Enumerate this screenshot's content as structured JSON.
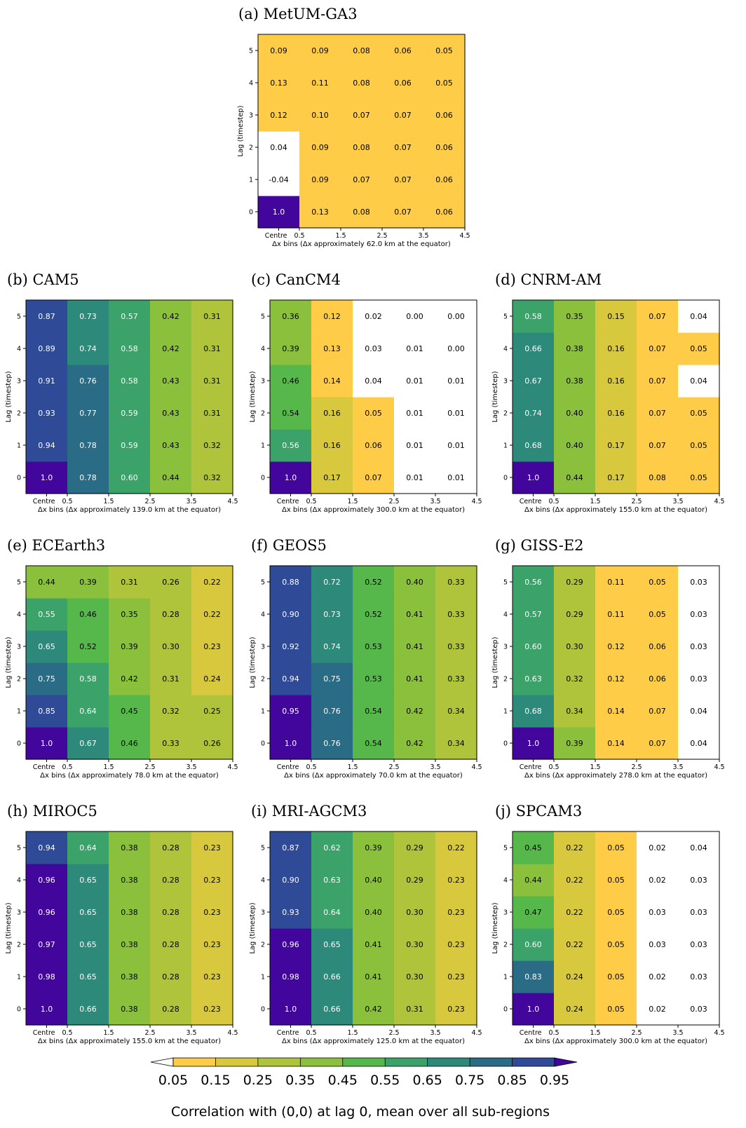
{
  "chart_data": [
    {
      "type": "heatmap",
      "title": "(a) MetUM-GA3",
      "xlabel": "Δx bins (Δx approximately 62.0 km at the equator)",
      "ylabel": "Lag (timestep)",
      "x_ticks": [
        "Centre",
        "0.5",
        "1.5",
        "2.5",
        "3.5",
        "4.5"
      ],
      "y_ticks": [
        "0",
        "1",
        "2",
        "3",
        "4",
        "5"
      ],
      "values": [
        [
          "1.0",
          "0.13",
          "0.08",
          "0.07",
          "0.06"
        ],
        [
          "-0.04",
          "0.09",
          "0.07",
          "0.07",
          "0.06"
        ],
        [
          "0.04",
          "0.09",
          "0.08",
          "0.07",
          "0.06"
        ],
        [
          "0.12",
          "0.10",
          "0.07",
          "0.07",
          "0.06"
        ],
        [
          "0.13",
          "0.11",
          "0.08",
          "0.06",
          "0.05"
        ],
        [
          "0.09",
          "0.09",
          "0.08",
          "0.06",
          "0.05"
        ]
      ]
    },
    {
      "type": "heatmap",
      "title": "(b) CAM5",
      "xlabel": "Δx bins (Δx approximately 139.0 km at the equator)",
      "ylabel": "Lag (timestep)",
      "x_ticks": [
        "Centre",
        "0.5",
        "1.5",
        "2.5",
        "3.5",
        "4.5"
      ],
      "y_ticks": [
        "0",
        "1",
        "2",
        "3",
        "4",
        "5"
      ],
      "values": [
        [
          "1.0",
          "0.78",
          "0.60",
          "0.44",
          "0.32"
        ],
        [
          "0.94",
          "0.78",
          "0.59",
          "0.43",
          "0.32"
        ],
        [
          "0.93",
          "0.77",
          "0.59",
          "0.43",
          "0.31"
        ],
        [
          "0.91",
          "0.76",
          "0.58",
          "0.43",
          "0.31"
        ],
        [
          "0.89",
          "0.74",
          "0.58",
          "0.42",
          "0.31"
        ],
        [
          "0.87",
          "0.73",
          "0.57",
          "0.42",
          "0.31"
        ]
      ]
    },
    {
      "type": "heatmap",
      "title": "(c) CanCM4",
      "xlabel": "Δx bins (Δx approximately 300.0 km at the equator)",
      "ylabel": "Lag (timestep)",
      "x_ticks": [
        "Centre",
        "0.5",
        "1.5",
        "2.5",
        "3.5",
        "4.5"
      ],
      "y_ticks": [
        "0",
        "1",
        "2",
        "3",
        "4",
        "5"
      ],
      "values": [
        [
          "1.0",
          "0.17",
          "0.07",
          "0.01",
          "0.01"
        ],
        [
          "0.56",
          "0.16",
          "0.06",
          "0.01",
          "0.01"
        ],
        [
          "0.54",
          "0.16",
          "0.05",
          "0.01",
          "0.01"
        ],
        [
          "0.46",
          "0.14",
          "0.04",
          "0.01",
          "0.01"
        ],
        [
          "0.39",
          "0.13",
          "0.03",
          "0.01",
          "0.00"
        ],
        [
          "0.36",
          "0.12",
          "0.02",
          "0.00",
          "0.00"
        ]
      ]
    },
    {
      "type": "heatmap",
      "title": "(d) CNRM-AM",
      "xlabel": "Δx bins (Δx approximately 155.0 km at the equator)",
      "ylabel": "Lag (timestep)",
      "x_ticks": [
        "Centre",
        "0.5",
        "1.5",
        "2.5",
        "3.5",
        "4.5"
      ],
      "y_ticks": [
        "0",
        "1",
        "2",
        "3",
        "4",
        "5"
      ],
      "values": [
        [
          "1.0",
          "0.44",
          "0.17",
          "0.08",
          "0.05"
        ],
        [
          "0.68",
          "0.40",
          "0.17",
          "0.07",
          "0.05"
        ],
        [
          "0.74",
          "0.40",
          "0.16",
          "0.07",
          "0.05"
        ],
        [
          "0.67",
          "0.38",
          "0.16",
          "0.07",
          "0.04"
        ],
        [
          "0.66",
          "0.38",
          "0.16",
          "0.07",
          "0.05"
        ],
        [
          "0.58",
          "0.35",
          "0.15",
          "0.07",
          "0.04"
        ]
      ]
    },
    {
      "type": "heatmap",
      "title": "(e) ECEarth3",
      "xlabel": "Δx bins (Δx approximately 78.0 km at the equator)",
      "ylabel": "Lag (timestep)",
      "x_ticks": [
        "Centre",
        "0.5",
        "1.5",
        "2.5",
        "3.5",
        "4.5"
      ],
      "y_ticks": [
        "0",
        "1",
        "2",
        "3",
        "4",
        "5"
      ],
      "values": [
        [
          "1.0",
          "0.67",
          "0.46",
          "0.33",
          "0.26"
        ],
        [
          "0.85",
          "0.64",
          "0.45",
          "0.32",
          "0.25"
        ],
        [
          "0.75",
          "0.58",
          "0.42",
          "0.31",
          "0.24"
        ],
        [
          "0.65",
          "0.52",
          "0.39",
          "0.30",
          "0.23"
        ],
        [
          "0.55",
          "0.46",
          "0.35",
          "0.28",
          "0.22"
        ],
        [
          "0.44",
          "0.39",
          "0.31",
          "0.26",
          "0.22"
        ]
      ]
    },
    {
      "type": "heatmap",
      "title": "(f) GEOS5",
      "xlabel": "Δx bins (Δx approximately 70.0 km at the equator)",
      "ylabel": "Lag (timestep)",
      "x_ticks": [
        "Centre",
        "0.5",
        "1.5",
        "2.5",
        "3.5",
        "4.5"
      ],
      "y_ticks": [
        "0",
        "1",
        "2",
        "3",
        "4",
        "5"
      ],
      "values": [
        [
          "1.0",
          "0.76",
          "0.54",
          "0.42",
          "0.34"
        ],
        [
          "0.95",
          "0.76",
          "0.54",
          "0.42",
          "0.34"
        ],
        [
          "0.94",
          "0.75",
          "0.53",
          "0.41",
          "0.33"
        ],
        [
          "0.92",
          "0.74",
          "0.53",
          "0.41",
          "0.33"
        ],
        [
          "0.90",
          "0.73",
          "0.52",
          "0.41",
          "0.33"
        ],
        [
          "0.88",
          "0.72",
          "0.52",
          "0.40",
          "0.33"
        ]
      ]
    },
    {
      "type": "heatmap",
      "title": "(g) GISS-E2",
      "xlabel": "Δx bins (Δx approximately 278.0 km at the equator)",
      "ylabel": "Lag (timestep)",
      "x_ticks": [
        "Centre",
        "0.5",
        "1.5",
        "2.5",
        "3.5",
        "4.5"
      ],
      "y_ticks": [
        "0",
        "1",
        "2",
        "3",
        "4",
        "5"
      ],
      "values": [
        [
          "1.0",
          "0.39",
          "0.14",
          "0.07",
          "0.04"
        ],
        [
          "0.68",
          "0.34",
          "0.14",
          "0.07",
          "0.04"
        ],
        [
          "0.63",
          "0.32",
          "0.12",
          "0.06",
          "0.03"
        ],
        [
          "0.60",
          "0.30",
          "0.12",
          "0.06",
          "0.03"
        ],
        [
          "0.57",
          "0.29",
          "0.11",
          "0.05",
          "0.03"
        ],
        [
          "0.56",
          "0.29",
          "0.11",
          "0.05",
          "0.03"
        ]
      ]
    },
    {
      "type": "heatmap",
      "title": "(h) MIROC5",
      "xlabel": "Δx bins (Δx approximately 155.0 km at the equator)",
      "ylabel": "Lag (timestep)",
      "x_ticks": [
        "Centre",
        "0.5",
        "1.5",
        "2.5",
        "3.5",
        "4.5"
      ],
      "y_ticks": [
        "0",
        "1",
        "2",
        "3",
        "4",
        "5"
      ],
      "values": [
        [
          "1.0",
          "0.66",
          "0.38",
          "0.28",
          "0.23"
        ],
        [
          "0.98",
          "0.65",
          "0.38",
          "0.28",
          "0.23"
        ],
        [
          "0.97",
          "0.65",
          "0.38",
          "0.28",
          "0.23"
        ],
        [
          "0.96",
          "0.65",
          "0.38",
          "0.28",
          "0.23"
        ],
        [
          "0.96",
          "0.65",
          "0.38",
          "0.28",
          "0.23"
        ],
        [
          "0.94",
          "0.64",
          "0.38",
          "0.28",
          "0.23"
        ]
      ]
    },
    {
      "type": "heatmap",
      "title": "(i) MRI-AGCM3",
      "xlabel": "Δx bins (Δx approximately 125.0 km at the equator)",
      "ylabel": "Lag (timestep)",
      "x_ticks": [
        "Centre",
        "0.5",
        "1.5",
        "2.5",
        "3.5",
        "4.5"
      ],
      "y_ticks": [
        "0",
        "1",
        "2",
        "3",
        "4",
        "5"
      ],
      "values": [
        [
          "1.0",
          "0.66",
          "0.42",
          "0.31",
          "0.23"
        ],
        [
          "0.98",
          "0.66",
          "0.41",
          "0.30",
          "0.23"
        ],
        [
          "0.96",
          "0.65",
          "0.41",
          "0.30",
          "0.23"
        ],
        [
          "0.93",
          "0.64",
          "0.40",
          "0.30",
          "0.23"
        ],
        [
          "0.90",
          "0.63",
          "0.40",
          "0.29",
          "0.23"
        ],
        [
          "0.87",
          "0.62",
          "0.39",
          "0.29",
          "0.22"
        ]
      ]
    },
    {
      "type": "heatmap",
      "title": "(j) SPCAM3",
      "xlabel": "Δx bins (Δx approximately 300.0 km at the equator)",
      "ylabel": "Lag (timestep)",
      "x_ticks": [
        "Centre",
        "0.5",
        "1.5",
        "2.5",
        "3.5",
        "4.5"
      ],
      "y_ticks": [
        "0",
        "1",
        "2",
        "3",
        "4",
        "5"
      ],
      "values": [
        [
          "1.0",
          "0.24",
          "0.05",
          "0.02",
          "0.03"
        ],
        [
          "0.83",
          "0.24",
          "0.05",
          "0.02",
          "0.03"
        ],
        [
          "0.60",
          "0.22",
          "0.05",
          "0.03",
          "0.03"
        ],
        [
          "0.47",
          "0.22",
          "0.05",
          "0.03",
          "0.03"
        ],
        [
          "0.44",
          "0.22",
          "0.05",
          "0.02",
          "0.03"
        ],
        [
          "0.45",
          "0.22",
          "0.05",
          "0.02",
          "0.04"
        ]
      ]
    }
  ],
  "colorbar": {
    "ticks": [
      "0.05",
      "0.15",
      "0.25",
      "0.35",
      "0.45",
      "0.55",
      "0.65",
      "0.75",
      "0.85",
      "0.95"
    ],
    "label": "Correlation with (0,0) at lag 0, mean over all sub-regions",
    "colors": [
      "#fecc47",
      "#d7c83d",
      "#afc43a",
      "#8ac03c",
      "#56b84a",
      "#3ba26a",
      "#2d8a7a",
      "#2a6b86",
      "#2f4a96",
      "#3a2aa0",
      "#42069c"
    ],
    "under_color": "#ffffff"
  }
}
